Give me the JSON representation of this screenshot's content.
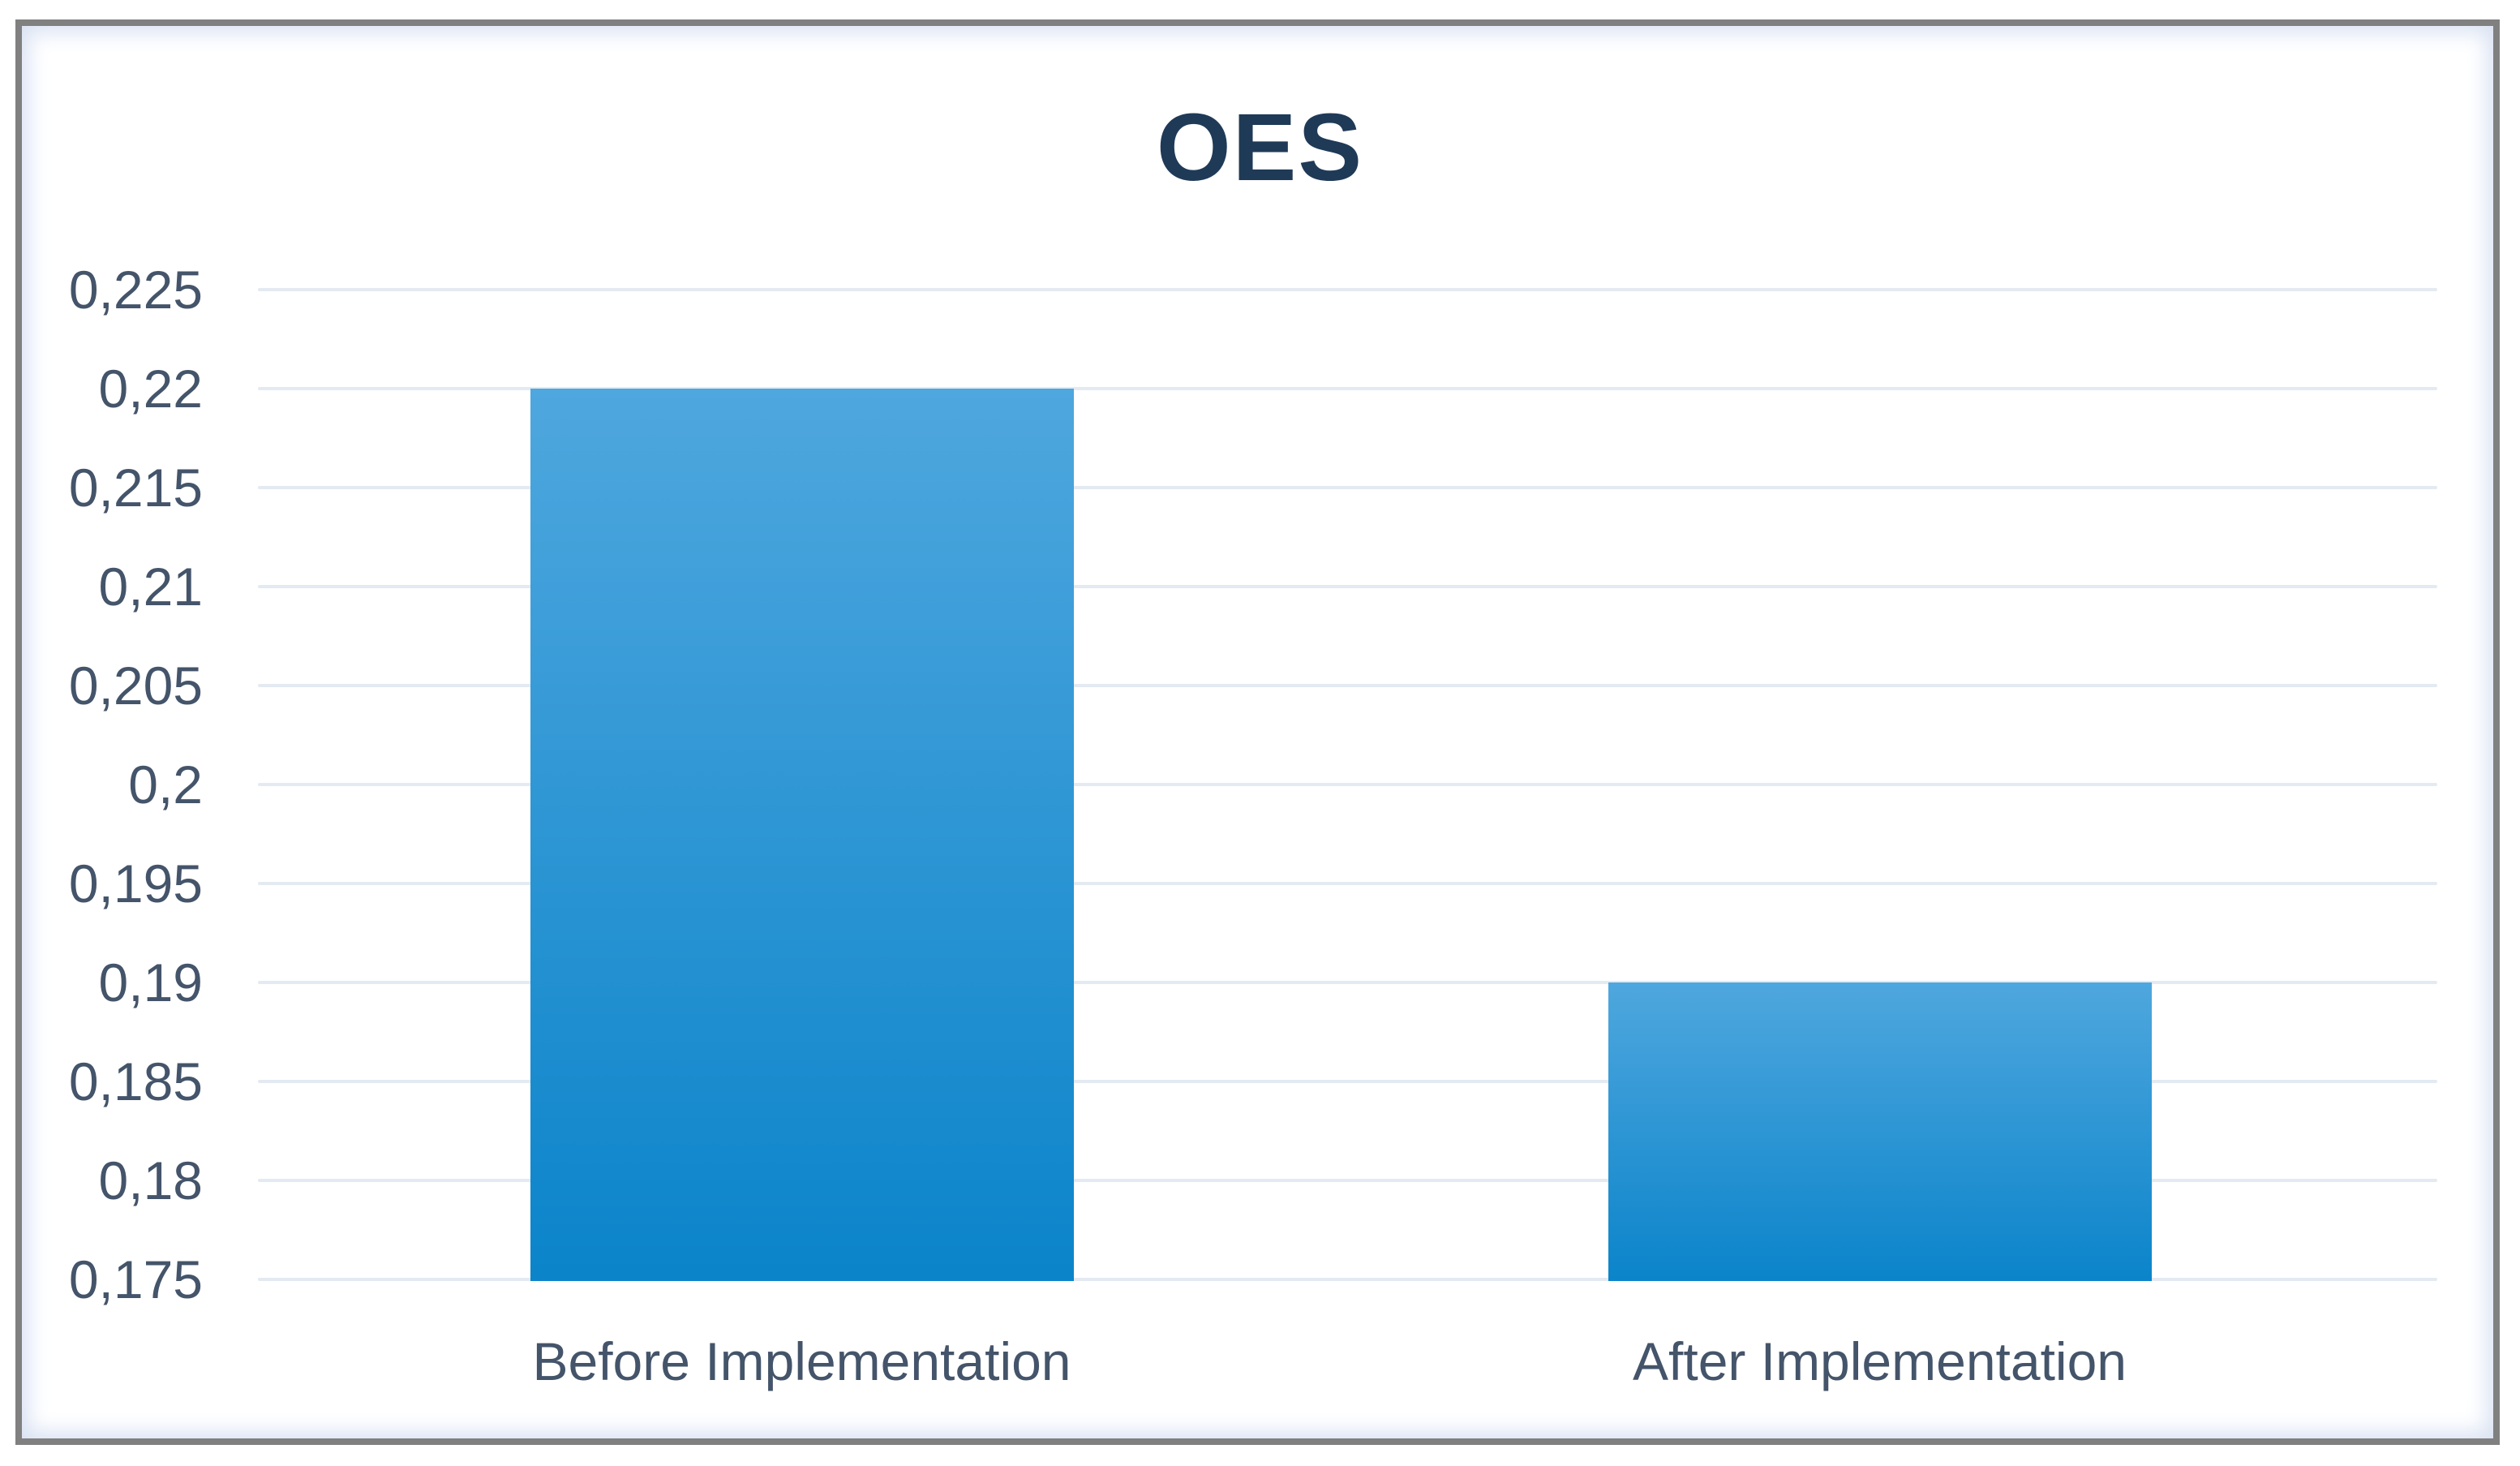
{
  "chart_data": {
    "type": "bar",
    "title": "OES",
    "categories": [
      "Before Implementation",
      "After Implementation"
    ],
    "values": [
      0.22,
      0.19
    ],
    "series": [
      {
        "name": "OES",
        "values": [
          0.22,
          0.19
        ]
      }
    ],
    "xlabel": "",
    "ylabel": "",
    "ylim": [
      0.175,
      0.225
    ],
    "ytick_step": 0.005,
    "ytick_labels": [
      "0,225",
      "0,22",
      "0,215",
      "0,21",
      "0,205",
      "0,2",
      "0,195",
      "0,19",
      "0,185",
      "0,18",
      "0,175"
    ],
    "decimal_separator": ",",
    "grid": true,
    "legend_position": "none",
    "colors": {
      "bar_gradient_top": "#4FA7DE",
      "bar_gradient_bottom": "#0B84CA",
      "gridline": "#E4EAF1",
      "title": "#1F3A57",
      "axis_labels": "#44546A",
      "frame_border": "#808080",
      "chart_edge_tint": "#D9E2F3"
    }
  }
}
